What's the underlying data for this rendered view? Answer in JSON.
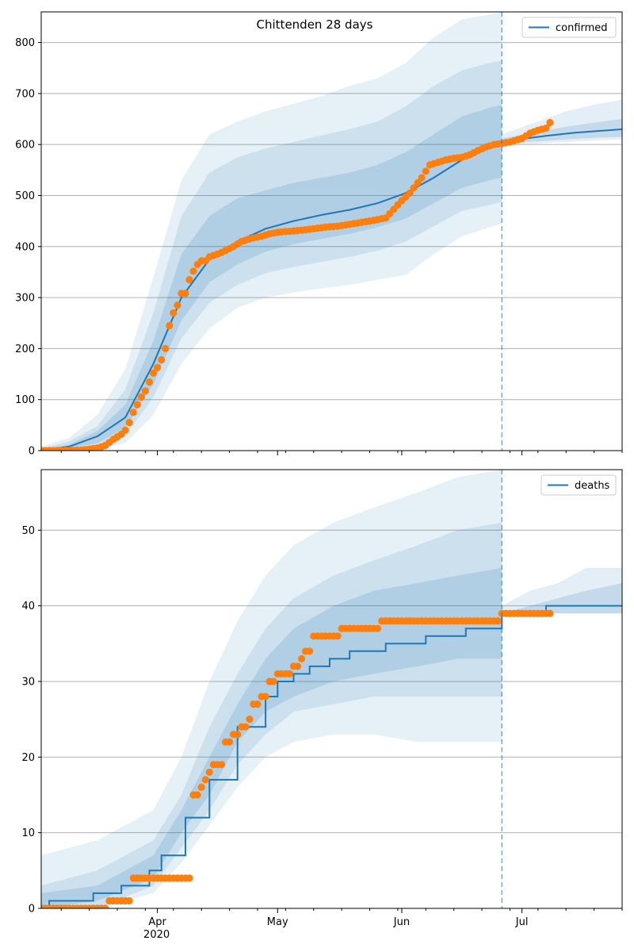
{
  "figure_title": "Chittenden 28 days",
  "colors": {
    "model": "#1f77b4",
    "observed": "#ff7f0e",
    "band": "#1f77b4",
    "grid": "#b0b0b0",
    "cutoff": "#1f77b4"
  },
  "chart_data": [
    {
      "type": "line",
      "panel": "top",
      "legend": [
        "confirmed"
      ],
      "legend_position": "top-right",
      "grid": "horizontal",
      "xlim": [
        "2020-03-03",
        "2020-07-26"
      ],
      "ylim": [
        0,
        860
      ],
      "yticks": [
        0,
        100,
        200,
        300,
        400,
        500,
        600,
        700,
        800
      ],
      "cutoff_date": "2020-06-26",
      "model": {
        "name": "confirmed",
        "x": [
          "2020-03-03",
          "2020-03-10",
          "2020-03-17",
          "2020-03-24",
          "2020-03-31",
          "2020-04-07",
          "2020-04-14",
          "2020-04-21",
          "2020-04-28",
          "2020-05-05",
          "2020-05-12",
          "2020-05-19",
          "2020-05-26",
          "2020-06-02",
          "2020-06-09",
          "2020-06-16",
          "2020-06-23",
          "2020-06-30",
          "2020-07-07",
          "2020-07-14",
          "2020-07-21",
          "2020-07-26"
        ],
        "median": [
          0,
          8,
          28,
          65,
          170,
          300,
          375,
          410,
          435,
          450,
          462,
          472,
          485,
          505,
          535,
          570,
          598,
          610,
          617,
          623,
          627,
          630
        ]
      },
      "bands": [
        {
          "level": "outer",
          "x": [
            "2020-03-03",
            "2020-03-10",
            "2020-03-17",
            "2020-03-24",
            "2020-03-31",
            "2020-04-07",
            "2020-04-14",
            "2020-04-21",
            "2020-04-28",
            "2020-05-05",
            "2020-05-12",
            "2020-05-19",
            "2020-05-26",
            "2020-06-02",
            "2020-06-09",
            "2020-06-16",
            "2020-06-23",
            "2020-06-26"
          ],
          "lower": [
            0,
            0,
            2,
            15,
            70,
            170,
            240,
            280,
            300,
            310,
            318,
            325,
            335,
            345,
            385,
            420,
            438,
            445
          ],
          "upper": [
            8,
            25,
            70,
            160,
            340,
            530,
            620,
            645,
            665,
            680,
            695,
            715,
            730,
            760,
            810,
            845,
            855,
            860
          ]
        },
        {
          "level": "middle",
          "x": [
            "2020-03-03",
            "2020-03-10",
            "2020-03-17",
            "2020-03-24",
            "2020-03-31",
            "2020-04-07",
            "2020-04-14",
            "2020-04-21",
            "2020-04-28",
            "2020-05-05",
            "2020-05-12",
            "2020-05-19",
            "2020-05-26",
            "2020-06-02",
            "2020-06-09",
            "2020-06-16",
            "2020-06-23",
            "2020-06-26"
          ],
          "lower": [
            0,
            2,
            8,
            30,
            105,
            220,
            290,
            325,
            348,
            360,
            370,
            380,
            392,
            410,
            440,
            470,
            482,
            488
          ],
          "upper": [
            4,
            18,
            48,
            120,
            270,
            460,
            545,
            575,
            592,
            605,
            618,
            630,
            645,
            675,
            715,
            745,
            760,
            765
          ]
        },
        {
          "level": "inner",
          "x": [
            "2020-03-03",
            "2020-03-10",
            "2020-03-17",
            "2020-03-24",
            "2020-03-31",
            "2020-04-07",
            "2020-04-14",
            "2020-04-21",
            "2020-04-28",
            "2020-05-05",
            "2020-05-12",
            "2020-05-19",
            "2020-05-26",
            "2020-06-02",
            "2020-06-09",
            "2020-06-16",
            "2020-06-23",
            "2020-06-26"
          ],
          "lower": [
            0,
            4,
            15,
            45,
            130,
            255,
            330,
            365,
            390,
            405,
            415,
            425,
            438,
            455,
            485,
            515,
            530,
            535
          ],
          "upper": [
            2,
            12,
            38,
            90,
            215,
            385,
            460,
            495,
            510,
            525,
            535,
            545,
            560,
            585,
            620,
            655,
            672,
            678
          ]
        },
        {
          "level": "forecast-outer",
          "x": [
            "2020-06-26",
            "2020-07-05",
            "2020-07-12",
            "2020-07-19",
            "2020-07-26"
          ],
          "lower": [
            600,
            602,
            605,
            608,
            610
          ],
          "upper": [
            620,
            645,
            665,
            678,
            688
          ]
        },
        {
          "level": "forecast-inner",
          "x": [
            "2020-06-26",
            "2020-07-05",
            "2020-07-12",
            "2020-07-19",
            "2020-07-26"
          ],
          "lower": [
            602,
            606,
            610,
            613,
            615
          ],
          "upper": [
            612,
            625,
            635,
            643,
            650
          ]
        }
      ],
      "observed": {
        "x": [
          "2020-03-03",
          "2020-03-08",
          "2020-03-13",
          "2020-03-17",
          "2020-03-19",
          "2020-03-21",
          "2020-03-23",
          "2020-03-24",
          "2020-03-25",
          "2020-03-26",
          "2020-03-27",
          "2020-03-28",
          "2020-03-29",
          "2020-03-31",
          "2020-04-01",
          "2020-04-02",
          "2020-04-03",
          "2020-04-04",
          "2020-04-05",
          "2020-04-06",
          "2020-04-07",
          "2020-04-08",
          "2020-04-09",
          "2020-04-10",
          "2020-04-11",
          "2020-04-12",
          "2020-04-13",
          "2020-04-14",
          "2020-04-16",
          "2020-04-18",
          "2020-04-20",
          "2020-04-22",
          "2020-04-25",
          "2020-04-27",
          "2020-04-29",
          "2020-05-01",
          "2020-05-04",
          "2020-05-07",
          "2020-05-10",
          "2020-05-13",
          "2020-05-16",
          "2020-05-20",
          "2020-05-24",
          "2020-05-28",
          "2020-06-01",
          "2020-06-03",
          "2020-06-05",
          "2020-06-06",
          "2020-06-08",
          "2020-06-10",
          "2020-06-12",
          "2020-06-14",
          "2020-06-16",
          "2020-06-18",
          "2020-06-20",
          "2020-06-22",
          "2020-06-24",
          "2020-06-26",
          "2020-06-28",
          "2020-07-01",
          "2020-07-03",
          "2020-07-05",
          "2020-07-07",
          "2020-07-08"
        ],
        "y": [
          0,
          0,
          1,
          5,
          10,
          22,
          32,
          40,
          55,
          75,
          90,
          105,
          117,
          152,
          163,
          178,
          200,
          245,
          270,
          285,
          308,
          308,
          335,
          352,
          365,
          372,
          372,
          380,
          385,
          392,
          400,
          410,
          417,
          420,
          425,
          428,
          430,
          432,
          435,
          438,
          440,
          445,
          450,
          456,
          490,
          505,
          525,
          535,
          560,
          565,
          570,
          573,
          575,
          580,
          588,
          595,
          600,
          602,
          605,
          612,
          622,
          628,
          632,
          643
        ]
      }
    },
    {
      "type": "line",
      "panel": "bottom",
      "legend": [
        "deaths"
      ],
      "legend_position": "top-right",
      "grid": "horizontal",
      "xlim": [
        "2020-03-03",
        "2020-07-26"
      ],
      "ylim": [
        0,
        58
      ],
      "yticks": [
        0,
        10,
        20,
        30,
        40,
        50
      ],
      "xticks": [
        {
          "date": "2020-04-01",
          "label": "Apr",
          "sublabel": "2020"
        },
        {
          "date": "2020-05-01",
          "label": "May",
          "sublabel": ""
        },
        {
          "date": "2020-06-01",
          "label": "Jun",
          "sublabel": ""
        },
        {
          "date": "2020-07-01",
          "label": "Jul",
          "sublabel": ""
        }
      ],
      "cutoff_date": "2020-06-26",
      "model": {
        "name": "deaths",
        "x": [
          "2020-03-03",
          "2020-03-05",
          "2020-03-16",
          "2020-03-23",
          "2020-03-30",
          "2020-04-02",
          "2020-04-08",
          "2020-04-14",
          "2020-04-21",
          "2020-04-28",
          "2020-05-01",
          "2020-05-05",
          "2020-05-09",
          "2020-05-14",
          "2020-05-19",
          "2020-05-28",
          "2020-06-07",
          "2020-06-17",
          "2020-06-26",
          "2020-07-07",
          "2020-07-26"
        ],
        "median": [
          0,
          1,
          2,
          3,
          5,
          7,
          12,
          17,
          24,
          28,
          30,
          31,
          32,
          33,
          34,
          35,
          36,
          37,
          39,
          40,
          40
        ]
      },
      "bands": [
        {
          "level": "outer",
          "x": [
            "2020-03-03",
            "2020-03-17",
            "2020-03-31",
            "2020-04-07",
            "2020-04-14",
            "2020-04-21",
            "2020-04-28",
            "2020-05-05",
            "2020-05-15",
            "2020-05-25",
            "2020-06-05",
            "2020-06-15",
            "2020-06-26"
          ],
          "lower": [
            0,
            0,
            2,
            6,
            11,
            16,
            20,
            22,
            23,
            23,
            22,
            22,
            22
          ],
          "upper": [
            7,
            9,
            13,
            20,
            30,
            38,
            44,
            48,
            51,
            53,
            55,
            57,
            58
          ]
        },
        {
          "level": "middle",
          "x": [
            "2020-03-03",
            "2020-03-17",
            "2020-03-31",
            "2020-04-07",
            "2020-04-14",
            "2020-04-21",
            "2020-04-28",
            "2020-05-05",
            "2020-05-15",
            "2020-05-25",
            "2020-06-05",
            "2020-06-15",
            "2020-06-26"
          ],
          "lower": [
            0,
            0,
            3,
            8,
            13,
            19,
            23,
            26,
            27,
            28,
            28,
            28,
            28
          ],
          "upper": [
            3,
            5,
            9,
            15,
            24,
            31,
            37,
            41,
            44,
            46,
            48,
            50,
            51
          ]
        },
        {
          "level": "inner",
          "x": [
            "2020-03-03",
            "2020-03-17",
            "2020-03-31",
            "2020-04-07",
            "2020-04-14",
            "2020-04-21",
            "2020-04-28",
            "2020-05-05",
            "2020-05-15",
            "2020-05-25",
            "2020-06-05",
            "2020-06-15",
            "2020-06-26"
          ],
          "lower": [
            0,
            1,
            4,
            10,
            15,
            22,
            26,
            28,
            30,
            31,
            32,
            33,
            33
          ],
          "upper": [
            2,
            3,
            7,
            13,
            20,
            27,
            33,
            37,
            40,
            42,
            43,
            44,
            45
          ]
        },
        {
          "level": "forecast-outer",
          "x": [
            "2020-06-26",
            "2020-07-03",
            "2020-07-10",
            "2020-07-17",
            "2020-07-26"
          ],
          "lower": [
            39,
            39,
            39,
            39,
            39
          ],
          "upper": [
            40,
            42,
            43,
            45,
            45
          ]
        },
        {
          "level": "forecast-inner",
          "x": [
            "2020-06-26",
            "2020-07-03",
            "2020-07-10",
            "2020-07-17",
            "2020-07-26"
          ],
          "lower": [
            39,
            39,
            39,
            39,
            39
          ],
          "upper": [
            39,
            40,
            41,
            42,
            43
          ]
        }
      ],
      "observed": {
        "x": [
          "2020-03-03",
          "2020-03-20",
          "2020-03-26",
          "2020-04-09",
          "2020-04-10",
          "2020-04-12",
          "2020-04-13",
          "2020-04-14",
          "2020-04-15",
          "2020-04-16",
          "2020-04-18",
          "2020-04-20",
          "2020-04-22",
          "2020-04-24",
          "2020-04-25",
          "2020-04-27",
          "2020-04-29",
          "2020-05-01",
          "2020-05-03",
          "2020-05-05",
          "2020-05-07",
          "2020-05-08",
          "2020-05-10",
          "2020-05-17",
          "2020-05-27",
          "2020-06-26",
          "2020-07-08"
        ],
        "y": [
          0,
          1,
          4,
          4,
          15,
          16,
          17,
          18,
          19,
          19,
          22,
          23,
          24,
          25,
          27,
          28,
          30,
          31,
          31,
          32,
          33,
          34,
          36,
          37,
          38,
          39,
          39
        ]
      }
    }
  ]
}
